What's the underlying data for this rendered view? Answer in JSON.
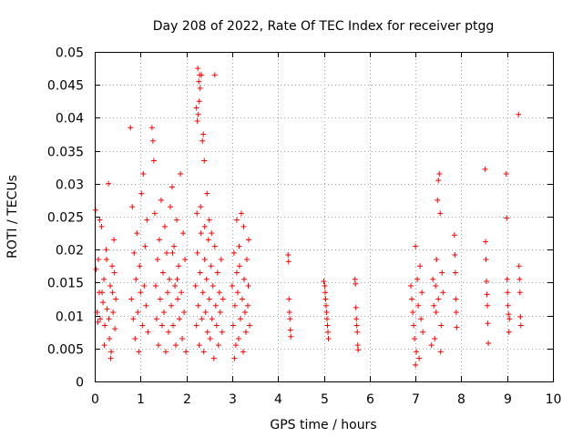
{
  "chart_data": {
    "type": "scatter",
    "title": "Day 208 of 2022, Rate Of TEC Index for receiver ptgg",
    "xlabel": "GPS time / hours",
    "ylabel": "ROTI / TECUs",
    "xlim": [
      0,
      10
    ],
    "ylim": [
      0,
      0.05
    ],
    "grid": true,
    "marker": "+",
    "color": "#ff0000",
    "x_ticks": [
      0,
      1,
      2,
      3,
      4,
      5,
      6,
      7,
      8,
      9,
      10
    ],
    "x_tick_labels": [
      "0",
      "1",
      "2",
      "3",
      "4",
      "5",
      "6",
      "7",
      "8",
      "9",
      "10"
    ],
    "y_ticks": [
      0,
      0.005,
      0.01,
      0.015,
      0.02,
      0.025,
      0.03,
      0.035,
      0.04,
      0.045,
      0.05
    ],
    "y_tick_labels": [
      "0",
      "0.005",
      "0.01",
      "0.015",
      "0.02",
      "0.025",
      "0.03",
      "0.035",
      "0.04",
      "0.045",
      "0.05"
    ],
    "points": [
      [
        0.02,
        0.026
      ],
      [
        0.05,
        0.0105
      ],
      [
        0.08,
        0.0185
      ],
      [
        0.1,
        0.0135
      ],
      [
        0.12,
        0.0095
      ],
      [
        0.15,
        0.0235
      ],
      [
        0.18,
        0.012
      ],
      [
        0.2,
        0.0155
      ],
      [
        0.22,
        0.0085
      ],
      [
        0.25,
        0.02
      ],
      [
        0.27,
        0.011
      ],
      [
        0.3,
        0.03
      ],
      [
        0.32,
        0.0065
      ],
      [
        0.34,
        0.0145
      ],
      [
        0.36,
        0.0045
      ],
      [
        0.38,
        0.0175
      ],
      [
        0.4,
        0.0105
      ],
      [
        0.42,
        0.0215
      ],
      [
        0.44,
        0.008
      ],
      [
        0.46,
        0.0125
      ],
      [
        0.03,
        0.017
      ],
      [
        0.07,
        0.009
      ],
      [
        0.11,
        0.0245
      ],
      [
        0.16,
        0.0135
      ],
      [
        0.21,
        0.0055
      ],
      [
        0.26,
        0.0185
      ],
      [
        0.31,
        0.0095
      ],
      [
        0.35,
        0.0035
      ],
      [
        0.39,
        0.0135
      ],
      [
        0.43,
        0.0165
      ],
      [
        0.78,
        0.0385
      ],
      [
        0.8,
        0.0125
      ],
      [
        0.82,
        0.0265
      ],
      [
        0.84,
        0.0095
      ],
      [
        0.86,
        0.0195
      ],
      [
        0.88,
        0.0065
      ],
      [
        0.9,
        0.0155
      ],
      [
        0.92,
        0.0225
      ],
      [
        0.94,
        0.0105
      ],
      [
        0.96,
        0.0045
      ],
      [
        0.98,
        0.0175
      ],
      [
        1.0,
        0.0135
      ],
      [
        1.02,
        0.0285
      ],
      [
        1.04,
        0.0085
      ],
      [
        1.06,
        0.0315
      ],
      [
        1.08,
        0.0145
      ],
      [
        1.1,
        0.0205
      ],
      [
        1.12,
        0.0115
      ],
      [
        1.14,
        0.0245
      ],
      [
        1.16,
        0.0075
      ],
      [
        1.25,
        0.0385
      ],
      [
        1.27,
        0.0365
      ],
      [
        1.29,
        0.0335
      ],
      [
        1.31,
        0.0255
      ],
      [
        1.33,
        0.0145
      ],
      [
        1.35,
        0.0095
      ],
      [
        1.37,
        0.0185
      ],
      [
        1.39,
        0.0055
      ],
      [
        1.41,
        0.0215
      ],
      [
        1.43,
        0.0125
      ],
      [
        1.45,
        0.0275
      ],
      [
        1.47,
        0.0085
      ],
      [
        1.49,
        0.0165
      ],
      [
        1.51,
        0.0105
      ],
      [
        1.53,
        0.0235
      ],
      [
        1.55,
        0.0045
      ],
      [
        1.57,
        0.0195
      ],
      [
        1.59,
        0.0135
      ],
      [
        1.61,
        0.0075
      ],
      [
        1.63,
        0.0155
      ],
      [
        1.65,
        0.0265
      ],
      [
        1.67,
        0.0115
      ],
      [
        1.69,
        0.0295
      ],
      [
        1.71,
        0.0085
      ],
      [
        1.73,
        0.0205
      ],
      [
        1.75,
        0.0145
      ],
      [
        1.77,
        0.0055
      ],
      [
        1.79,
        0.0245
      ],
      [
        1.81,
        0.0125
      ],
      [
        1.83,
        0.0175
      ],
      [
        1.85,
        0.0095
      ],
      [
        1.87,
        0.0315
      ],
      [
        1.89,
        0.0135
      ],
      [
        1.91,
        0.0065
      ],
      [
        1.93,
        0.0225
      ],
      [
        1.95,
        0.0105
      ],
      [
        1.97,
        0.0185
      ],
      [
        1.99,
        0.0045
      ],
      [
        1.7,
        0.0195
      ],
      [
        1.8,
        0.0155
      ],
      [
        2.25,
        0.0475
      ],
      [
        2.27,
        0.0455
      ],
      [
        2.29,
        0.0465
      ],
      [
        2.3,
        0.0445
      ],
      [
        2.28,
        0.0425
      ],
      [
        2.26,
        0.0405
      ],
      [
        2.24,
        0.0395
      ],
      [
        2.22,
        0.0415
      ],
      [
        2.33,
        0.0465
      ],
      [
        2.35,
        0.0365
      ],
      [
        2.37,
        0.0375
      ],
      [
        2.39,
        0.0335
      ],
      [
        2.62,
        0.0465
      ],
      [
        2.23,
        0.0255
      ],
      [
        2.31,
        0.0265
      ],
      [
        2.2,
        0.0145
      ],
      [
        2.22,
        0.0085
      ],
      [
        2.24,
        0.0195
      ],
      [
        2.26,
        0.0115
      ],
      [
        2.28,
        0.0055
      ],
      [
        2.3,
        0.0165
      ],
      [
        2.32,
        0.0225
      ],
      [
        2.34,
        0.0095
      ],
      [
        2.36,
        0.0135
      ],
      [
        2.38,
        0.0045
      ],
      [
        2.4,
        0.0185
      ],
      [
        2.42,
        0.0105
      ],
      [
        2.44,
        0.0155
      ],
      [
        2.46,
        0.0075
      ],
      [
        2.48,
        0.0215
      ],
      [
        2.5,
        0.0125
      ],
      [
        2.52,
        0.0065
      ],
      [
        2.54,
        0.0175
      ],
      [
        2.56,
        0.0095
      ],
      [
        2.58,
        0.0145
      ],
      [
        2.6,
        0.0035
      ],
      [
        2.62,
        0.0205
      ],
      [
        2.64,
        0.0115
      ],
      [
        2.66,
        0.0085
      ],
      [
        2.68,
        0.0165
      ],
      [
        2.7,
        0.0055
      ],
      [
        2.72,
        0.0135
      ],
      [
        2.74,
        0.0105
      ],
      [
        2.76,
        0.0185
      ],
      [
        2.78,
        0.0075
      ],
      [
        2.8,
        0.0125
      ],
      [
        2.4,
        0.0235
      ],
      [
        2.5,
        0.0245
      ],
      [
        2.45,
        0.0285
      ],
      [
        2.55,
        0.0225
      ],
      [
        3.0,
        0.0145
      ],
      [
        3.02,
        0.0085
      ],
      [
        3.04,
        0.0195
      ],
      [
        3.06,
        0.0115
      ],
      [
        3.08,
        0.0055
      ],
      [
        3.1,
        0.0245
      ],
      [
        3.12,
        0.0135
      ],
      [
        3.14,
        0.0065
      ],
      [
        3.16,
        0.0175
      ],
      [
        3.18,
        0.0095
      ],
      [
        3.2,
        0.0255
      ],
      [
        3.22,
        0.0125
      ],
      [
        3.24,
        0.0045
      ],
      [
        3.26,
        0.0155
      ],
      [
        3.28,
        0.0105
      ],
      [
        3.3,
        0.0075
      ],
      [
        3.32,
        0.0185
      ],
      [
        3.34,
        0.0115
      ],
      [
        3.36,
        0.0215
      ],
      [
        3.38,
        0.0085
      ],
      [
        3.05,
        0.0035
      ],
      [
        3.15,
        0.0205
      ],
      [
        3.25,
        0.0235
      ],
      [
        3.35,
        0.0145
      ],
      [
        3.1,
        0.0165
      ],
      [
        4.22,
        0.0192
      ],
      [
        4.23,
        0.0182
      ],
      [
        4.24,
        0.0125
      ],
      [
        4.25,
        0.0105
      ],
      [
        4.26,
        0.0095
      ],
      [
        4.27,
        0.0078
      ],
      [
        4.28,
        0.0068
      ],
      [
        5.0,
        0.0152
      ],
      [
        5.02,
        0.0145
      ],
      [
        5.03,
        0.0135
      ],
      [
        5.04,
        0.0125
      ],
      [
        5.05,
        0.0115
      ],
      [
        5.06,
        0.0105
      ],
      [
        5.07,
        0.0095
      ],
      [
        5.08,
        0.0085
      ],
      [
        5.09,
        0.0075
      ],
      [
        5.1,
        0.0065
      ],
      [
        5.68,
        0.0155
      ],
      [
        5.69,
        0.0148
      ],
      [
        5.7,
        0.0112
      ],
      [
        5.71,
        0.0095
      ],
      [
        5.72,
        0.0085
      ],
      [
        5.73,
        0.0075
      ],
      [
        5.74,
        0.0055
      ],
      [
        5.75,
        0.0048
      ],
      [
        6.9,
        0.0145
      ],
      [
        6.92,
        0.0125
      ],
      [
        6.94,
        0.0105
      ],
      [
        6.96,
        0.0085
      ],
      [
        6.98,
        0.0065
      ],
      [
        7.0,
        0.0205
      ],
      [
        7.02,
        0.0045
      ],
      [
        7.04,
        0.0155
      ],
      [
        7.06,
        0.0115
      ],
      [
        7.08,
        0.0035
      ],
      [
        7.1,
        0.0175
      ],
      [
        7.12,
        0.0095
      ],
      [
        7.14,
        0.0135
      ],
      [
        7.16,
        0.0075
      ],
      [
        7.0,
        0.0025
      ],
      [
        7.4,
        0.0115
      ],
      [
        7.42,
        0.0065
      ],
      [
        7.44,
        0.0145
      ],
      [
        7.46,
        0.0185
      ],
      [
        7.48,
        0.0275
      ],
      [
        7.5,
        0.0305
      ],
      [
        7.52,
        0.0315
      ],
      [
        7.54,
        0.0255
      ],
      [
        7.56,
        0.0085
      ],
      [
        7.58,
        0.0165
      ],
      [
        7.5,
        0.0125
      ],
      [
        7.45,
        0.0105
      ],
      [
        7.55,
        0.0045
      ],
      [
        7.6,
        0.0135
      ],
      [
        7.35,
        0.0055
      ],
      [
        7.38,
        0.0155
      ],
      [
        7.85,
        0.0222
      ],
      [
        7.87,
        0.0165
      ],
      [
        7.88,
        0.0125
      ],
      [
        7.89,
        0.0105
      ],
      [
        7.9,
        0.0082
      ],
      [
        7.86,
        0.0192
      ],
      [
        8.52,
        0.0322
      ],
      [
        8.53,
        0.0212
      ],
      [
        8.54,
        0.0185
      ],
      [
        8.55,
        0.0152
      ],
      [
        8.56,
        0.0132
      ],
      [
        8.57,
        0.0115
      ],
      [
        8.58,
        0.0088
      ],
      [
        8.59,
        0.0058
      ],
      [
        8.98,
        0.0315
      ],
      [
        8.99,
        0.0248
      ],
      [
        9.0,
        0.0155
      ],
      [
        9.01,
        0.0135
      ],
      [
        9.02,
        0.0115
      ],
      [
        9.03,
        0.0102
      ],
      [
        9.04,
        0.0075
      ],
      [
        9.05,
        0.0095
      ],
      [
        9.25,
        0.0405
      ],
      [
        9.26,
        0.0175
      ],
      [
        9.27,
        0.0155
      ],
      [
        9.28,
        0.0135
      ],
      [
        9.29,
        0.0098
      ],
      [
        9.3,
        0.0085
      ]
    ]
  }
}
